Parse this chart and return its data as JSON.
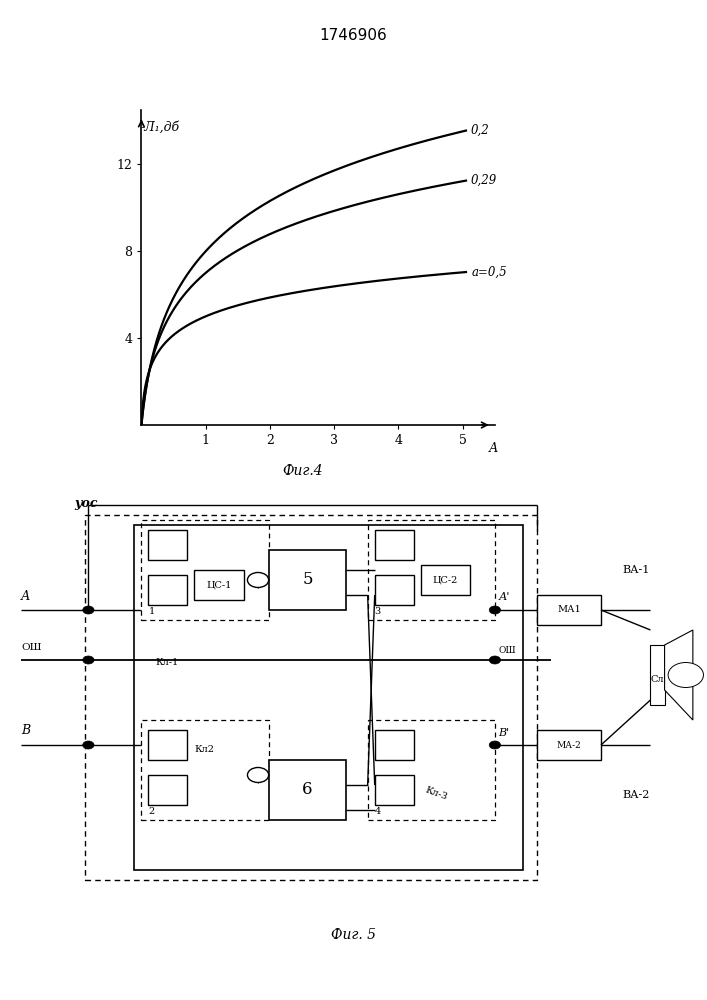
{
  "title": "1746906",
  "fig4_label": "Фиг.4",
  "fig5_label": "Фиг. 5",
  "ylabel": "-Л₁,дб",
  "xlabel": "А",
  "yticks": [
    4,
    8,
    12
  ],
  "xticks": [
    1,
    2,
    3,
    4,
    5
  ],
  "curves_params": [
    {
      "A": 3.64,
      "B": 8.0,
      "label": "0,2"
    },
    {
      "A": 2.73,
      "B": 12.0,
      "label": "0,29"
    },
    {
      "A": 1.272,
      "B": 50.0,
      "label": "а=0,5"
    }
  ],
  "curve_color": "#000000",
  "bg_color": "#ffffff"
}
